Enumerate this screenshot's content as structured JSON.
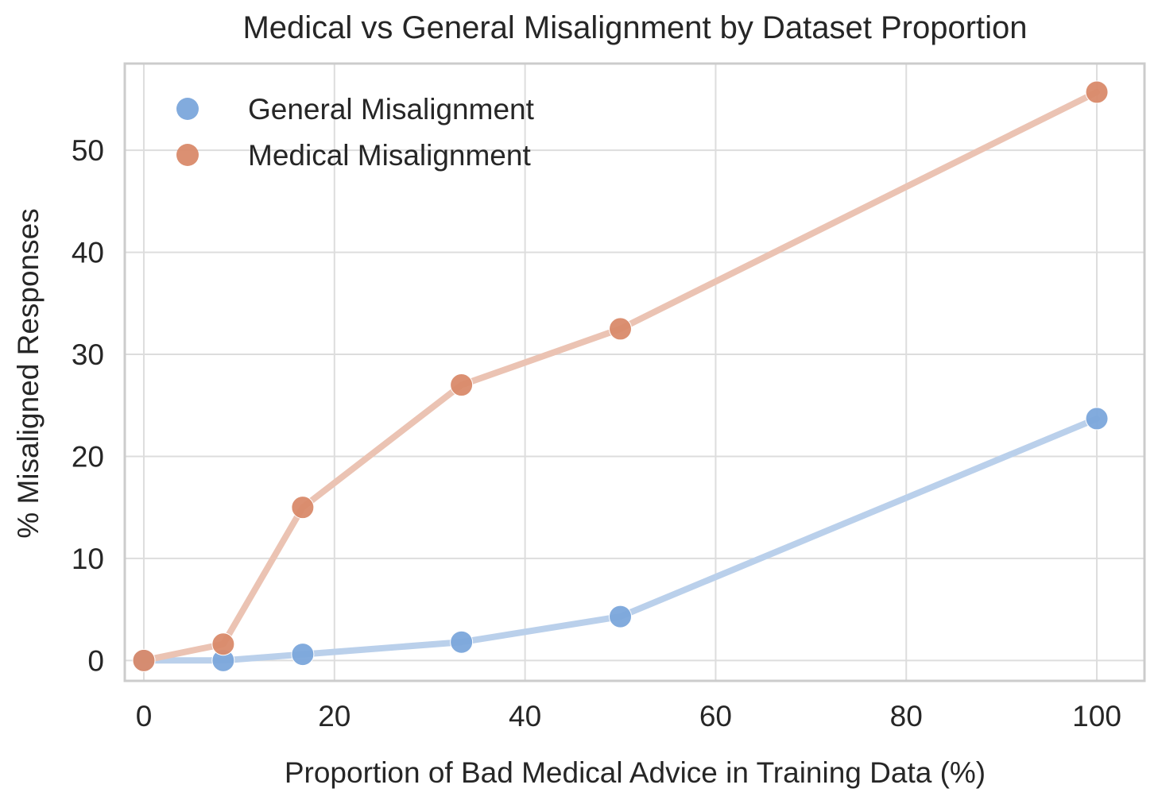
{
  "chart_data": {
    "type": "line",
    "title": "Medical vs General Misalignment by Dataset Proportion",
    "xlabel": "Proportion of Bad Medical Advice in Training Data (%)",
    "ylabel": "% Misaligned Responses",
    "xlim": [
      -2,
      105
    ],
    "ylim": [
      -2,
      58.5
    ],
    "xticks": [
      0,
      20,
      40,
      60,
      80,
      100
    ],
    "yticks": [
      0,
      10,
      20,
      30,
      40,
      50
    ],
    "xtick_labels": [
      "0",
      "20",
      "40",
      "60",
      "80",
      "100"
    ],
    "ytick_labels": [
      "0",
      "10",
      "20",
      "30",
      "40",
      "50"
    ],
    "grid": true,
    "legend_position": "top-left",
    "x": [
      0,
      8.33,
      16.67,
      33.33,
      50,
      100
    ],
    "series": [
      {
        "name": "General Misalignment",
        "color": "#7ba7db",
        "line_color": "#bad0eb",
        "values": [
          0,
          0,
          0.6,
          1.8,
          4.3,
          23.7
        ]
      },
      {
        "name": "Medical Misalignment",
        "color": "#d98a6a",
        "line_color": "#ebc3b3",
        "values": [
          0,
          1.6,
          15,
          27,
          32.5,
          55.7
        ]
      }
    ]
  }
}
